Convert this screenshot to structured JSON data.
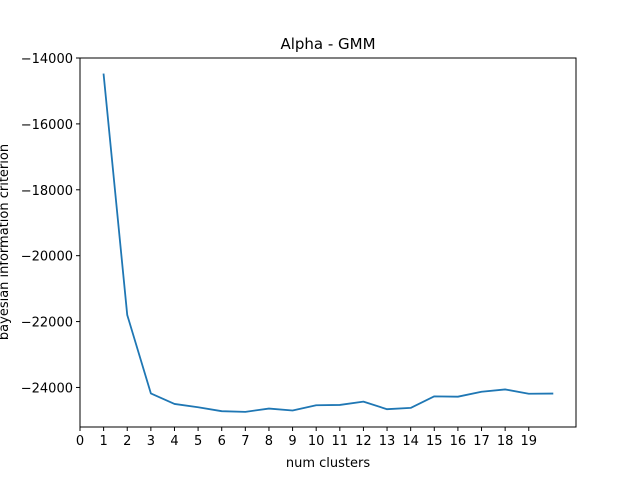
{
  "chart_data": {
    "type": "line",
    "title": "Alpha - GMM",
    "xlabel": "num clusters",
    "ylabel": "bayesian information criterion",
    "x_ticks": [
      "0",
      "1",
      "2",
      "3",
      "4",
      "5",
      "6",
      "7",
      "8",
      "9",
      "10",
      "11",
      "12",
      "13",
      "14",
      "15",
      "16",
      "17",
      "18",
      "19"
    ],
    "y_ticks": [
      "−14000",
      "−16000",
      "−18000",
      "−20000",
      "−22000",
      "−24000"
    ],
    "xlim": [
      0,
      21
    ],
    "ylim": [
      -25200,
      -14000
    ],
    "grid": false,
    "series": [
      {
        "color": "#1f77b4",
        "x": [
          1,
          2,
          3,
          4,
          5,
          6,
          7,
          8,
          9,
          10,
          11,
          12,
          13,
          14,
          15,
          16,
          17,
          18,
          19,
          20
        ],
        "y": [
          -14500,
          -21800,
          -24180,
          -24500,
          -24600,
          -24720,
          -24740,
          -24640,
          -24700,
          -24540,
          -24530,
          -24430,
          -24660,
          -24620,
          -24270,
          -24280,
          -24130,
          -24060,
          -24190,
          -24185
        ]
      }
    ]
  }
}
